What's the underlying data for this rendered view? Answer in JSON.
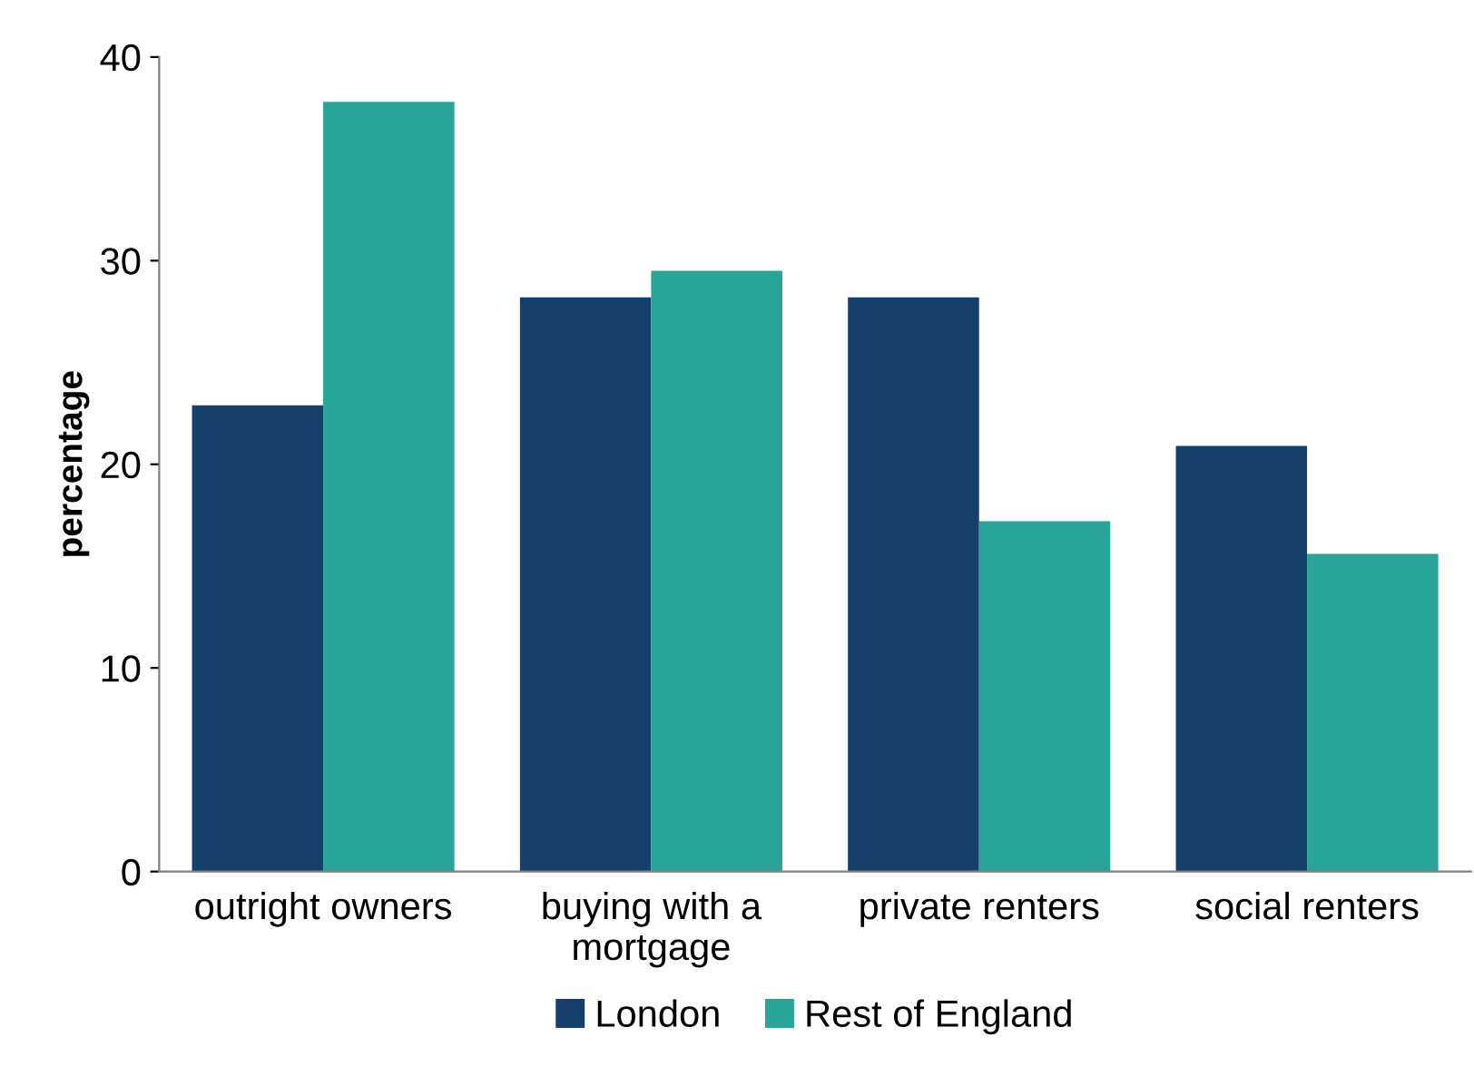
{
  "chart_data": {
    "type": "bar",
    "ylabel": "percentage",
    "categories": [
      "outright owners",
      "buying with a\nmortgage",
      "private renters",
      "social renters"
    ],
    "series": [
      {
        "name": "London",
        "color": "#15406b",
        "values": [
          22.9,
          28.2,
          28.2,
          20.9
        ]
      },
      {
        "name": "Rest of England",
        "color": "#29a499",
        "values": [
          37.8,
          29.5,
          17.2,
          15.6
        ]
      }
    ],
    "ylim": [
      0,
      40
    ],
    "yticks": [
      0,
      10,
      20,
      30,
      40
    ],
    "grid": false,
    "legend": "bottom"
  }
}
